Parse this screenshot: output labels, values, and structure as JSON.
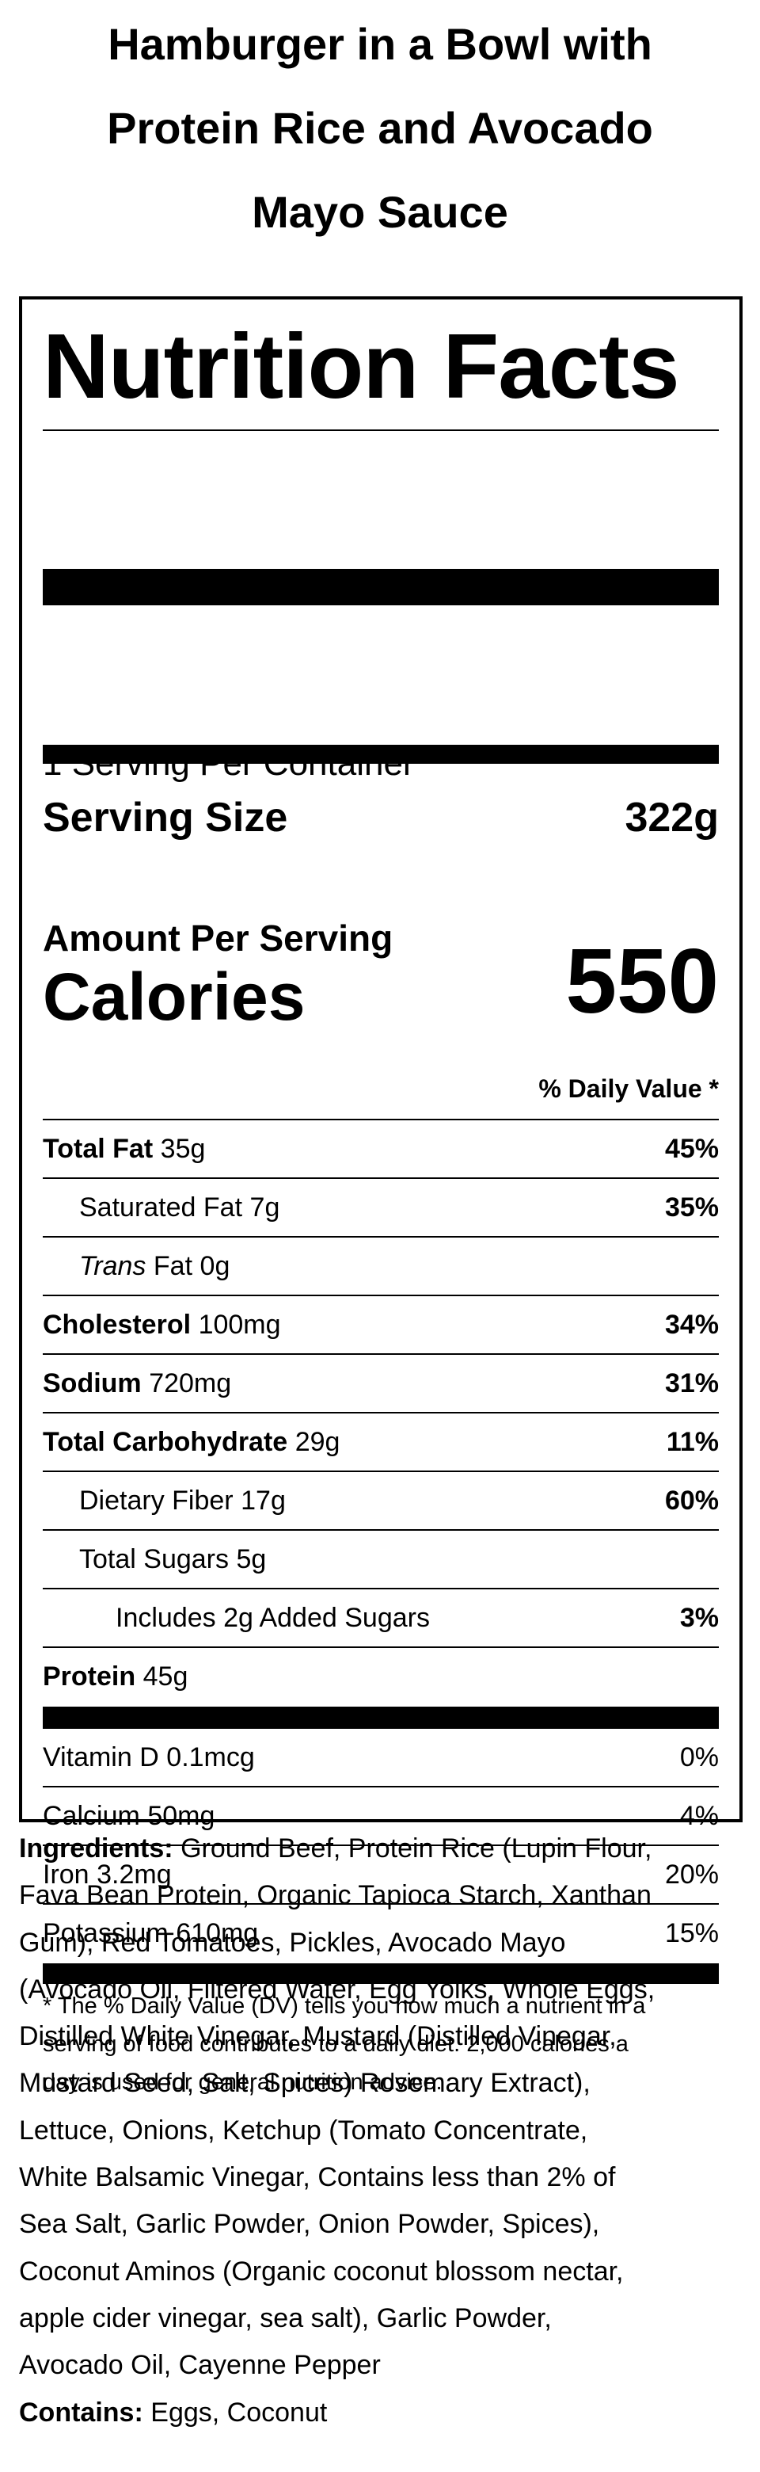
{
  "title": {
    "lines": [
      "Hamburger in a Bowl with",
      "Protein Rice and Avocado",
      "Mayo Sauce"
    ]
  },
  "label": {
    "heading": "Nutrition Facts",
    "servings": "1 Serving Per Container",
    "serving_size_label": "Serving Size",
    "serving_size": "322g",
    "amount_per_serving": "Amount Per Serving",
    "calories_label": "Calories",
    "calories": 550,
    "daily_value_header": "% Daily Value *",
    "nutrients": [
      {
        "name": "Total Fat",
        "amount": "35g",
        "dv": "45%",
        "indent": 0,
        "bold": true
      },
      {
        "name": "Saturated Fat",
        "amount": "7g",
        "dv": "35%",
        "indent": 1,
        "bold": false
      },
      {
        "name_italic": "Trans",
        "name": "Fat",
        "amount": "0g",
        "indent": 1,
        "bold": false
      },
      {
        "name": "Cholesterol",
        "amount": "100mg",
        "dv": "34%",
        "indent": 0,
        "bold": true
      },
      {
        "name": "Sodium",
        "amount": "720mg",
        "dv": "31%",
        "indent": 0,
        "bold": true
      },
      {
        "name": "Total Carbohydrate",
        "amount": "29g",
        "dv": "11%",
        "indent": 0,
        "bold": true
      },
      {
        "name": "Dietary Fiber",
        "amount": "17g",
        "dv": "60%",
        "indent": 1,
        "bold": false
      },
      {
        "name": "Total Sugars",
        "amount": "5g",
        "indent": 1,
        "bold": false
      },
      {
        "name": "Includes 2g Added Sugars",
        "dv": "3%",
        "indent": 2,
        "bold": false
      },
      {
        "name": "Protein",
        "amount": "45g",
        "indent": 0,
        "bold": true
      }
    ],
    "vitamins": [
      {
        "name": "Vitamin D",
        "amount": "0.1mcg",
        "dv": "0%"
      },
      {
        "name": "Calcium",
        "amount": "50mg",
        "dv": "4%"
      },
      {
        "name": "Iron",
        "amount": "3.2mg",
        "dv": "20%"
      },
      {
        "name": "Potassium",
        "amount": "610mg",
        "dv": "15%"
      }
    ],
    "footnote": [
      "* The % Daily Value (DV) tells you how much a nutrient in a",
      "serving of food contributes to a daily diet. 2,000 calories a",
      "day is used for general nutrition advice."
    ]
  },
  "ingredients": {
    "label": "Ingredients:",
    "lines": [
      "Ground Beef, Protein Rice (Lupin Flour,",
      "Fava Bean Protein, Organic Tapioca Starch, Xanthan",
      "Gum), Red Tomatoes, Pickles, Avocado Mayo",
      "(Avocado Oil, Filtered Water, Egg Yolks, Whole Eggs,",
      "Distilled White Vinegar, Mustard (Distilled Vinegar,",
      "Mustard Seed, Salt, Spices) Rosemary Extract),",
      "Lettuce, Onions, Ketchup (Tomato Concentrate,",
      "White Balsamic Vinegar, Contains less than 2% of",
      "Sea Salt, Garlic Powder, Onion Powder, Spices),",
      "Coconut Aminos (Organic coconut blossom nectar,",
      "apple cider vinegar, sea salt), Garlic Powder,",
      "Avocado Oil, Cayenne Pepper"
    ]
  },
  "contains": {
    "label": "Contains:",
    "text": "Eggs, Coconut"
  }
}
